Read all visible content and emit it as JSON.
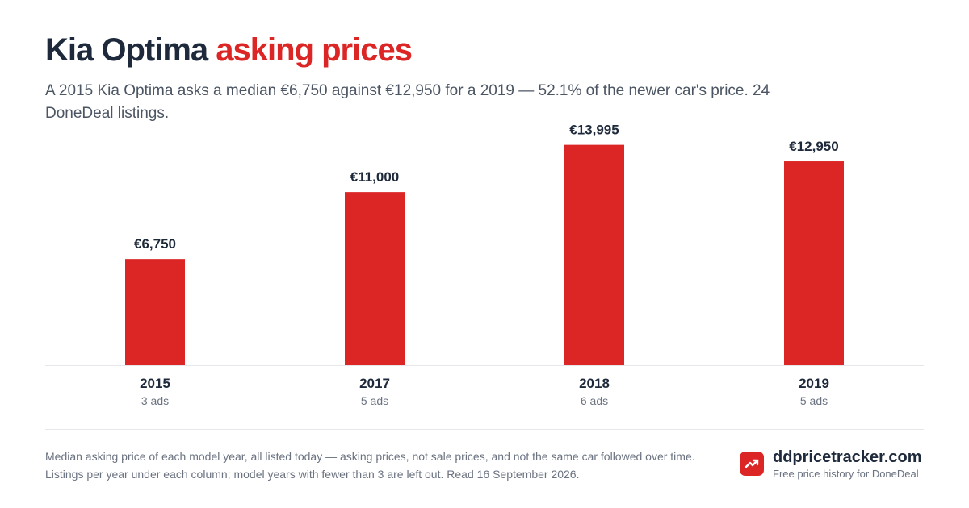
{
  "header": {
    "title_main": "Kia Optima",
    "title_accent": "asking prices",
    "subtitle": "A 2015 Kia Optima asks a median €6,750 against €12,950 for a 2019 — 52.1% of the newer car's price. 24 DoneDeal listings."
  },
  "chart_data": {
    "type": "bar",
    "categories": [
      "2015",
      "2017",
      "2018",
      "2019"
    ],
    "values": [
      6750,
      11000,
      13995,
      12950
    ],
    "value_labels": [
      "€6,750",
      "€11,000",
      "€13,995",
      "€12,950"
    ],
    "listing_counts": [
      "3 ads",
      "5 ads",
      "6 ads",
      "5 ads"
    ],
    "title": "",
    "xlabel": "",
    "ylabel": "",
    "ylim": [
      0,
      15000
    ],
    "grid": false,
    "legend": "none",
    "bar_color": "#dc2626"
  },
  "footer": {
    "note": "Median asking price of each model year, all listed today — asking prices, not sale prices, and not the same car followed over time. Listings per year under each column; model years with fewer than 3 are left out. Read 16 September 2026.",
    "brand_name": "ddpricetracker.com",
    "brand_tagline": "Free price history for DoneDeal",
    "brand_icon": "trending-up-icon"
  },
  "colors": {
    "accent": "#dc2626",
    "title": "#1e2a3b",
    "muted": "#6b7280"
  }
}
